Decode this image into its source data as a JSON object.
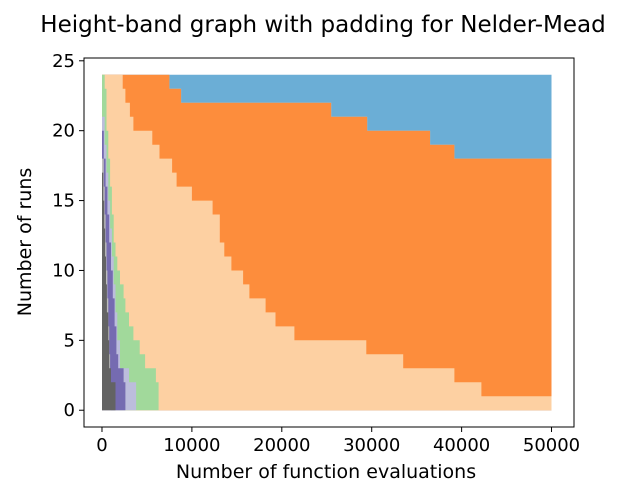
{
  "chart_data": {
    "type": "area",
    "title": "Height-band graph with padding for Nelder-Mead",
    "xlabel": "Number of function evaluations",
    "ylabel": "Number of runs",
    "xlim": [
      -2000,
      52500
    ],
    "ylim": [
      -1.2,
      25.2
    ],
    "xticks": [
      0,
      10000,
      20000,
      30000,
      40000,
      50000
    ],
    "yticks": [
      0,
      5,
      10,
      15,
      20,
      25
    ],
    "grid": false,
    "legend": "none",
    "bands": [
      {
        "color": "#6baed6",
        "upper": [
          [
            0,
            24
          ],
          [
            50000,
            24
          ]
        ]
      },
      {
        "color": "#c6dbef",
        "upper": [
          [
            0,
            24
          ],
          [
            6300,
            24
          ],
          [
            7500,
            23
          ],
          [
            8800,
            22
          ],
          [
            22200,
            22
          ],
          [
            25500,
            21
          ],
          [
            29500,
            20
          ],
          [
            36500,
            19
          ],
          [
            39200,
            18
          ],
          [
            50000,
            18
          ]
        ]
      },
      {
        "color": "#fd8d3c",
        "upper": [
          [
            0,
            24
          ],
          [
            6300,
            24
          ],
          [
            7500,
            23
          ],
          [
            8800,
            22
          ],
          [
            22200,
            22
          ],
          [
            25500,
            21
          ],
          [
            29500,
            20
          ],
          [
            36500,
            19
          ],
          [
            39200,
            18
          ],
          [
            50000,
            18
          ]
        ]
      },
      {
        "color": "#fdd0a2",
        "upper": [
          [
            0,
            24
          ],
          [
            600,
            24
          ],
          [
            2300,
            23
          ],
          [
            2600,
            22
          ],
          [
            3100,
            21
          ],
          [
            3500,
            20
          ],
          [
            4800,
            20
          ],
          [
            5600,
            19
          ],
          [
            6400,
            18
          ],
          [
            7800,
            17
          ],
          [
            8300,
            16
          ],
          [
            10000,
            15
          ],
          [
            12300,
            14
          ],
          [
            13100,
            12
          ],
          [
            13600,
            11
          ],
          [
            14400,
            10
          ],
          [
            15700,
            9
          ],
          [
            16400,
            8
          ],
          [
            18200,
            7
          ],
          [
            19300,
            6
          ],
          [
            21400,
            5
          ],
          [
            29400,
            4
          ],
          [
            32000,
            4
          ],
          [
            33500,
            3
          ],
          [
            39200,
            2
          ],
          [
            42200,
            1
          ],
          [
            50000,
            1
          ]
        ]
      },
      {
        "color": "#a1d99b",
        "upper": [
          [
            0,
            24
          ],
          [
            300,
            23
          ],
          [
            500,
            20
          ],
          [
            700,
            18
          ],
          [
            900,
            16
          ],
          [
            1100,
            14
          ],
          [
            1300,
            12
          ],
          [
            1500,
            11
          ],
          [
            1700,
            10
          ],
          [
            2000,
            9
          ],
          [
            2400,
            8
          ],
          [
            2600,
            7
          ],
          [
            3000,
            6
          ],
          [
            3500,
            5
          ],
          [
            4200,
            4
          ],
          [
            4800,
            3
          ],
          [
            6000,
            2
          ],
          [
            6300,
            1
          ],
          [
            6300,
            0
          ]
        ]
      },
      {
        "color": "#bcbddc",
        "upper": [
          [
            0,
            21
          ],
          [
            300,
            19
          ],
          [
            500,
            17
          ],
          [
            700,
            15
          ],
          [
            900,
            13
          ],
          [
            1100,
            11
          ],
          [
            1300,
            9
          ],
          [
            1500,
            7
          ],
          [
            1700,
            5
          ],
          [
            2000,
            3
          ],
          [
            3000,
            2
          ],
          [
            3800,
            1
          ],
          [
            3800,
            0
          ]
        ]
      },
      {
        "color": "#756bb1",
        "upper": [
          [
            0,
            20
          ],
          [
            200,
            18
          ],
          [
            400,
            16
          ],
          [
            600,
            14
          ],
          [
            800,
            12
          ],
          [
            1000,
            10
          ],
          [
            1200,
            8
          ],
          [
            1400,
            6
          ],
          [
            1600,
            4
          ],
          [
            1800,
            3
          ],
          [
            2400,
            2
          ],
          [
            2600,
            1
          ],
          [
            2600,
            0
          ]
        ]
      },
      {
        "color": "#bdbdbd",
        "upper": [
          [
            0,
            18
          ],
          [
            200,
            16
          ],
          [
            300,
            14
          ],
          [
            400,
            12
          ],
          [
            500,
            10
          ],
          [
            600,
            8
          ],
          [
            700,
            6
          ],
          [
            800,
            4
          ],
          [
            900,
            2
          ],
          [
            1000,
            0
          ]
        ]
      },
      {
        "color": "#636363",
        "upper": [
          [
            0,
            17
          ],
          [
            150,
            15
          ],
          [
            250,
            13
          ],
          [
            350,
            11
          ],
          [
            450,
            9
          ],
          [
            550,
            7
          ],
          [
            700,
            5
          ],
          [
            800,
            3
          ],
          [
            1000,
            2
          ],
          [
            1500,
            1
          ],
          [
            1500,
            0
          ]
        ]
      }
    ]
  }
}
